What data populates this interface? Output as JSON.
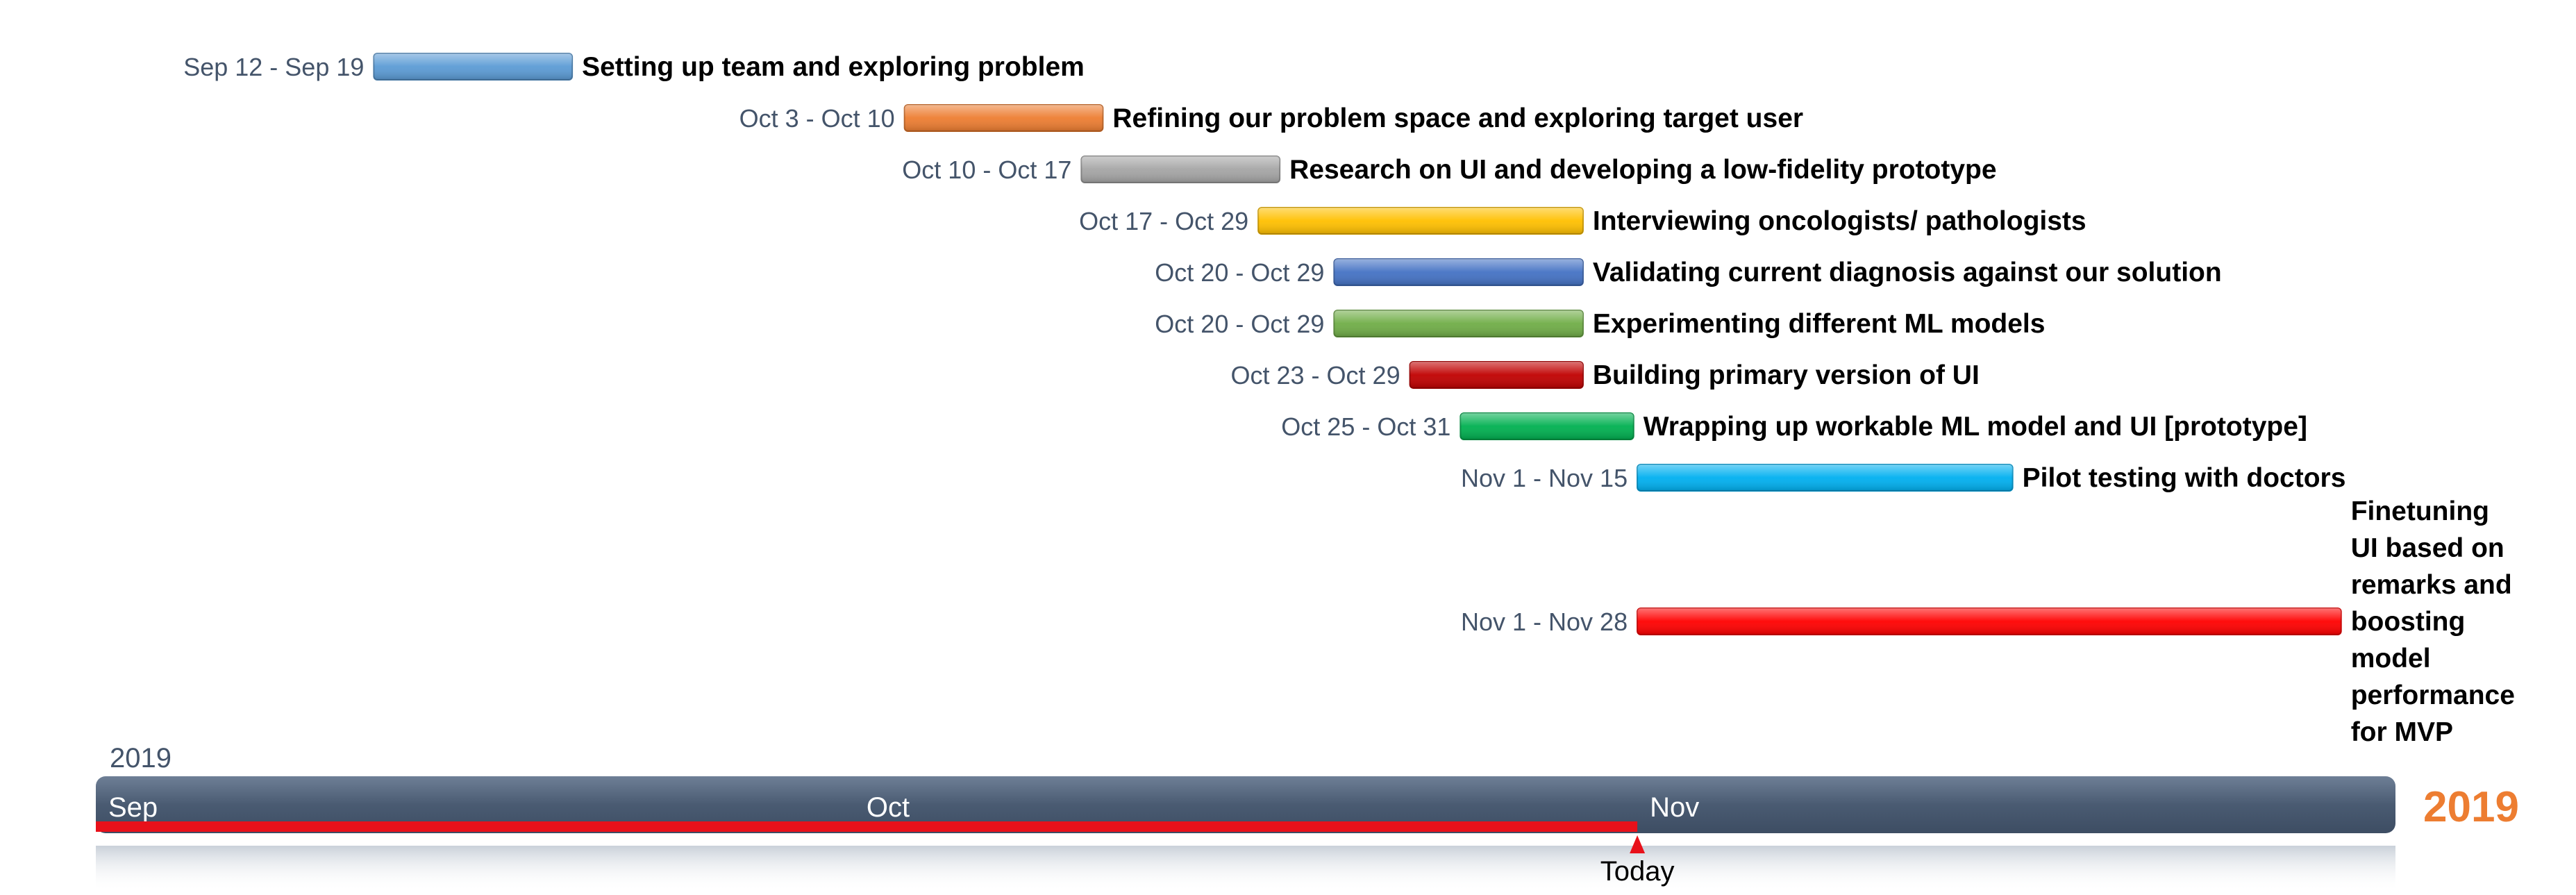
{
  "chart_data": {
    "type": "gantt",
    "year": "2019",
    "year_badge": "2019",
    "today_label": "Today",
    "today": "2019-11-01",
    "time_range": [
      "2019-09-01",
      "2019-12-01"
    ],
    "months": [
      {
        "label": "Sep",
        "start": "2019-09-01"
      },
      {
        "label": "Oct",
        "start": "2019-10-01"
      },
      {
        "label": "Nov",
        "start": "2019-11-01"
      }
    ],
    "tasks": [
      {
        "range_label": "Sep 12 - Sep 19",
        "name": "Setting up team and exploring problem",
        "start": "2019-09-12",
        "end": "2019-09-19",
        "color": "#5b9bd5"
      },
      {
        "range_label": "Oct 3 - Oct 10",
        "name": "Refining our problem space and exploring target user",
        "start": "2019-10-03",
        "end": "2019-10-10",
        "color": "#ed7d31"
      },
      {
        "range_label": "Oct 10 - Oct 17",
        "name": "Research on UI and developing a low-fidelity prototype",
        "start": "2019-10-10",
        "end": "2019-10-17",
        "color": "#a5a5a5"
      },
      {
        "range_label": "Oct 17 - Oct 29",
        "name": "Interviewing oncologists/ pathologists",
        "start": "2019-10-17",
        "end": "2019-10-29",
        "color": "#ffc000"
      },
      {
        "range_label": "Oct 20 - Oct 29",
        "name": "Validating current diagnosis against our solution",
        "start": "2019-10-20",
        "end": "2019-10-29",
        "color": "#4472c4"
      },
      {
        "range_label": "Oct 20 - Oct 29",
        "name": "Experimenting different ML models",
        "start": "2019-10-20",
        "end": "2019-10-29",
        "color": "#70ad47"
      },
      {
        "range_label": "Oct 23 - Oct 29",
        "name": "Building primary version of UI",
        "start": "2019-10-23",
        "end": "2019-10-29",
        "color": "#c00000"
      },
      {
        "range_label": "Oct 25 - Oct 31",
        "name": "Wrapping up workable ML model and UI [prototype]",
        "start": "2019-10-25",
        "end": "2019-10-31",
        "color": "#00b050"
      },
      {
        "range_label": "Nov 1 - Nov 15",
        "name": "Pilot testing with doctors",
        "start": "2019-11-01",
        "end": "2019-11-15",
        "color": "#00b0f0"
      },
      {
        "range_label": "Nov 1 - Nov 28",
        "name": "Finetuning UI based on remarks and boosting model performance for MVP",
        "start": "2019-11-01",
        "end": "2019-11-28",
        "color": "#ff0000"
      }
    ],
    "colors": {
      "timeline_band": "#4a5b72",
      "progress": "#e8111b",
      "year_badge": "#ed7d31"
    }
  }
}
